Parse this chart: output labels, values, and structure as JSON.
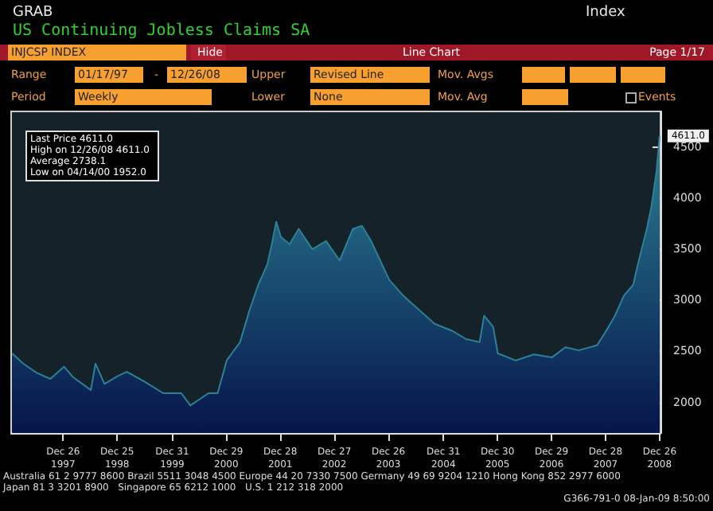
{
  "chart_data": {
    "type": "area",
    "title": "US Continuing Jobless Claims SA",
    "x": [
      "1997-01-17",
      "1997-04",
      "1997-07",
      "1997-10",
      "1998-01",
      "1998-03",
      "1998-07",
      "1998-08",
      "1998-10",
      "1999-01",
      "1999-03",
      "1999-07",
      "1999-11",
      "2000-03",
      "2000-05",
      "2000-09",
      "2000-11",
      "2001-01",
      "2001-04",
      "2001-06",
      "2001-08",
      "2001-10",
      "2001-11",
      "2001-12",
      "2002-01",
      "2002-03",
      "2002-05",
      "2002-08",
      "2002-11",
      "2003-02",
      "2003-05",
      "2003-07",
      "2003-09",
      "2003-11",
      "2004-01",
      "2004-04",
      "2004-08",
      "2004-11",
      "2005-03",
      "2005-06",
      "2005-09",
      "2005-10",
      "2005-12",
      "2006-01",
      "2006-05",
      "2006-09",
      "2007-01",
      "2007-04",
      "2007-07",
      "2007-11",
      "2008-01",
      "2008-03",
      "2008-05",
      "2008-07",
      "2008-08",
      "2008-10",
      "2008-11",
      "2008-12-05",
      "2008-12-26"
    ],
    "series": [
      {
        "color": "#2c8196",
        "values": [
          2480,
          2380,
          2290,
          2230,
          2350,
          2250,
          2120,
          2380,
          2180,
          2260,
          2300,
          2200,
          2090,
          2090,
          1970,
          2090,
          2090,
          2410,
          2590,
          2890,
          3150,
          3350,
          3550,
          3770,
          3620,
          3550,
          3700,
          3500,
          3580,
          3390,
          3700,
          3730,
          3580,
          3390,
          3200,
          3050,
          2890,
          2770,
          2700,
          2620,
          2590,
          2850,
          2740,
          2480,
          2410,
          2470,
          2440,
          2540,
          2510,
          2560,
          2700,
          2850,
          3050,
          3150,
          3350,
          3700,
          3920,
          4260,
          4611
        ]
      }
    ],
    "xlim": [
      "1997-01-10",
      "2009-01-01"
    ],
    "xticks": [
      {
        "value": "1997-12-26",
        "label": "Dec 26\n1997"
      },
      {
        "value": "1998-12-25",
        "label": "Dec 25\n1998"
      },
      {
        "value": "1999-12-31",
        "label": "Dec 31\n1999"
      },
      {
        "value": "2000-12-29",
        "label": "Dec 29\n2000"
      },
      {
        "value": "2001-12-28",
        "label": "Dec 28\n2001"
      },
      {
        "value": "2002-12-27",
        "label": "Dec 27\n2002"
      },
      {
        "value": "2003-12-26",
        "label": "Dec 26\n2003"
      },
      {
        "value": "2004-12-31",
        "label": "Dec 31\n2004"
      },
      {
        "value": "2005-12-30",
        "label": "Dec 30\n2005"
      },
      {
        "value": "2006-12-29",
        "label": "Dec 29\n2006"
      },
      {
        "value": "2007-12-28",
        "label": "Dec 28\n2007"
      },
      {
        "value": "2008-12-26",
        "label": "Dec 26\n2008"
      }
    ],
    "ylim": [
      1700,
      4850
    ],
    "yticks": [
      2000,
      2500,
      3000,
      3500,
      4000,
      4500
    ],
    "grid": false,
    "marker": "none",
    "annotations": [
      {
        "text": "4611.0",
        "x": "2008-12-26",
        "y": 4611
      },
      "GRAB",
      "Index",
      "INJCSP INDEX",
      "Hide",
      "Line Chart",
      "Page 1/17",
      "Range",
      "01/17/97",
      "-",
      "12/26/08",
      "Upper",
      "Revised Line",
      "Mov. Avgs",
      "Period",
      "Weekly",
      "Lower",
      "None",
      "Mov. Avg",
      "Events",
      "Last Price 4611.0",
      "High on 12/26/08 4611.0",
      "Average 2738.1",
      "Low on 04/14/00 1952.0",
      "Australia 61 2 9777 8600 Brazil 5511 3048 4500 Europe 44 20 7330 7500 Germany 49 69 9204 1210 Hong Kong 852 2977 6000",
      "Japan 81 3 3201 8900   Singapore 65 6212 1000   U.S. 1 212 318 2000",
      "G366-791-0 08-Jan-09 8:50:00"
    ]
  }
}
